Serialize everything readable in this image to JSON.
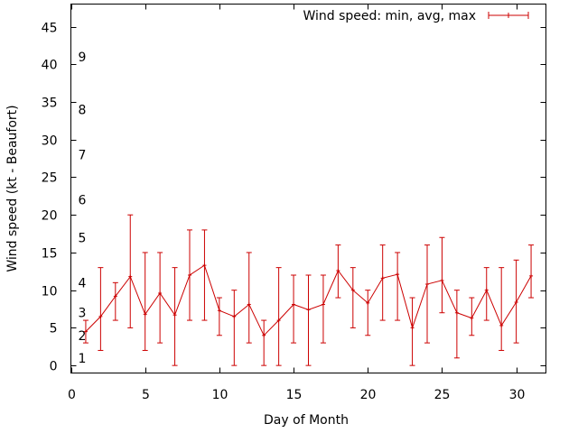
{
  "chart_data": {
    "type": "line",
    "title": "",
    "xlabel": "Day of Month",
    "ylabel": "Wind speed (kt - Beaufort)",
    "xlim": [
      0,
      32
    ],
    "ylim": [
      -1,
      48
    ],
    "x_ticks": [
      0,
      5,
      10,
      15,
      20,
      25,
      30
    ],
    "y_ticks": [
      0,
      5,
      10,
      15,
      20,
      25,
      30,
      35,
      40,
      45
    ],
    "beaufort_labels": [
      {
        "label": "1",
        "y": 1
      },
      {
        "label": "2",
        "y": 4
      },
      {
        "label": "3",
        "y": 7
      },
      {
        "label": "4",
        "y": 11
      },
      {
        "label": "5",
        "y": 17
      },
      {
        "label": "6",
        "y": 22
      },
      {
        "label": "7",
        "y": 28
      },
      {
        "label": "8",
        "y": 34
      },
      {
        "label": "9",
        "y": 41
      }
    ],
    "legend": {
      "label": "Wind speed: min, avg, max",
      "position": "top-right"
    },
    "series": [
      {
        "name": "Wind speed: min, avg, max",
        "color": "#cc0000",
        "x": [
          1,
          2,
          3,
          4,
          5,
          6,
          7,
          8,
          9,
          10,
          11,
          12,
          13,
          14,
          15,
          16,
          17,
          18,
          19,
          20,
          21,
          22,
          23,
          24,
          25,
          26,
          27,
          28,
          29,
          30,
          31
        ],
        "avg": [
          4.5,
          6.5,
          9.2,
          11.8,
          6.8,
          9.6,
          6.7,
          12,
          13.3,
          7.3,
          6.5,
          8.1,
          4,
          6,
          8.1,
          7.4,
          8.1,
          12.6,
          10,
          8.3,
          11.6,
          12.1,
          5,
          10.8,
          11.3,
          7,
          6.3,
          10,
          5.3,
          8.4,
          11.9
        ],
        "min": [
          3,
          2,
          6,
          5,
          2,
          3,
          0,
          6,
          6,
          4,
          0,
          3,
          0,
          0,
          3,
          0,
          3,
          9,
          5,
          4,
          6,
          6,
          0,
          3,
          7,
          1,
          4,
          6,
          2,
          3,
          9
        ],
        "max": [
          6,
          13,
          11,
          20,
          15,
          15,
          13,
          18,
          18,
          9,
          10,
          15,
          6,
          13,
          12,
          12,
          12,
          16,
          13,
          10,
          16,
          15,
          9,
          16,
          17,
          10,
          9,
          13,
          13,
          14,
          16
        ]
      }
    ]
  }
}
